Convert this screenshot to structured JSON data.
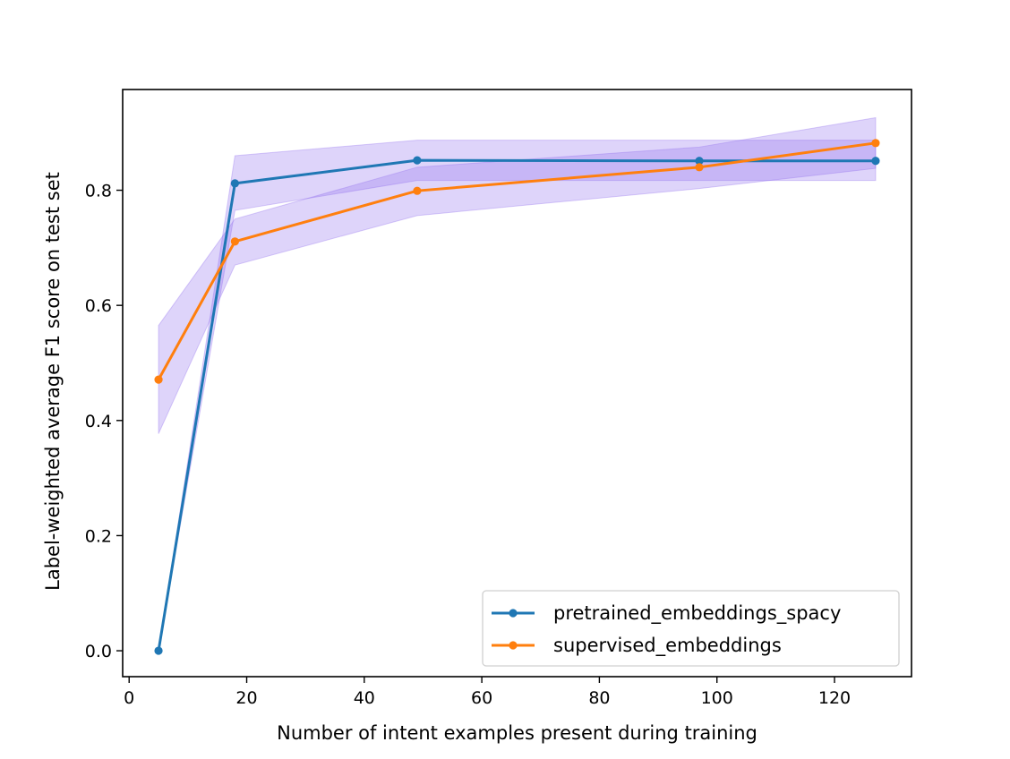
{
  "chart_data": {
    "type": "line",
    "title": "",
    "xlabel": "Number of intent examples present during training",
    "ylabel": "Label-weighted average F1 score on test set",
    "xlim": [
      -1.1,
      133.1
    ],
    "ylim": [
      -0.045,
      0.975
    ],
    "xticks": [
      0,
      20,
      40,
      60,
      80,
      100,
      120
    ],
    "yticks": [
      0.0,
      0.2,
      0.4,
      0.6,
      0.8
    ],
    "ytick_labels": [
      "0.0",
      "0.2",
      "0.4",
      "0.6",
      "0.8"
    ],
    "grid": false,
    "legend_position": "lower-right",
    "series": [
      {
        "name": "pretrained_embeddings_spacy",
        "color": "#1f77b4",
        "x": [
          5,
          18,
          49,
          97,
          127
        ],
        "y": [
          0.0,
          0.812,
          0.852,
          0.851,
          0.851
        ],
        "band_lower": [
          0.0,
          0.765,
          0.817,
          0.817,
          0.817
        ],
        "band_upper": [
          0.0,
          0.86,
          0.887,
          0.887,
          0.887
        ]
      },
      {
        "name": "supervised_embeddings",
        "color": "#ff7f0e",
        "x": [
          5,
          18,
          49,
          97,
          127
        ],
        "y": [
          0.471,
          0.711,
          0.799,
          0.84,
          0.882
        ],
        "band_lower": [
          0.377,
          0.67,
          0.756,
          0.803,
          0.838
        ],
        "band_upper": [
          0.565,
          0.75,
          0.84,
          0.875,
          0.926
        ]
      }
    ],
    "band_color": "#9370ee"
  }
}
